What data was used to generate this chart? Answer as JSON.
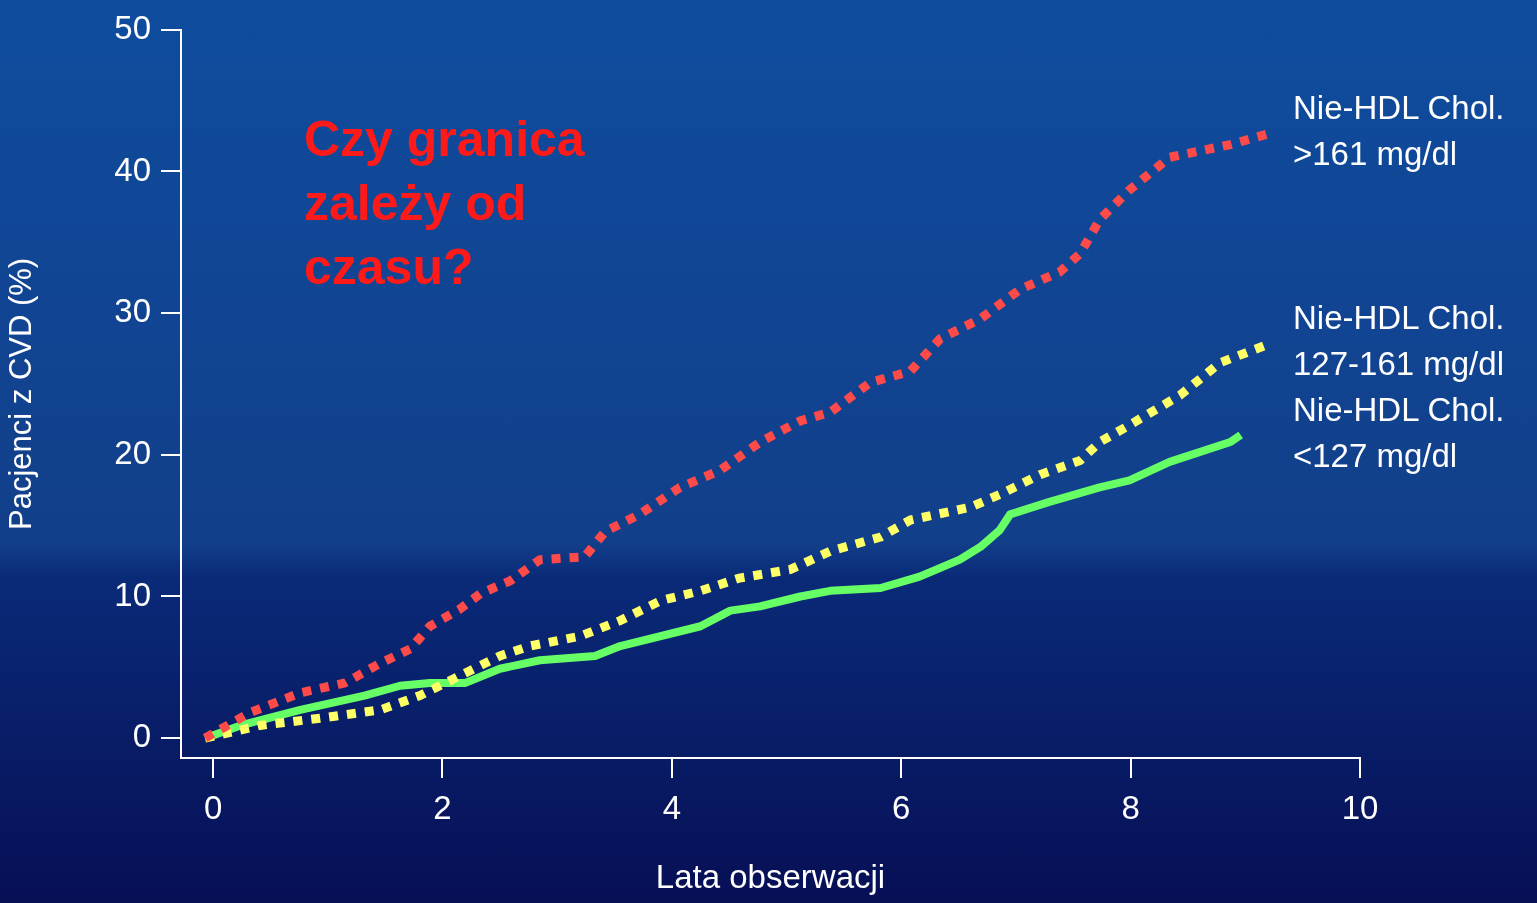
{
  "chart_data": {
    "type": "line",
    "xlabel": "Lata obserwacji",
    "ylabel": "Pacjenci z CVD (%)",
    "annotations": [
      "Czy granica zależy od czasu?"
    ],
    "xlim": [
      -0.28,
      10
    ],
    "xticks": [
      0,
      2,
      4,
      6,
      8,
      10
    ],
    "ylim": [
      -1.4,
      50
    ],
    "yticks": [
      0,
      10,
      20,
      30,
      40,
      50
    ],
    "grid": false,
    "legend": false,
    "marker": "none",
    "series": [
      {
        "name": "Nie-HDL Chol. >161 mg/dl",
        "color": "#ff4a4a",
        "line_style": "dotted",
        "x": [
          -0.07,
          0.32,
          0.76,
          1.15,
          1.46,
          1.72,
          1.89,
          2.15,
          2.33,
          2.59,
          2.85,
          3.24,
          3.42,
          3.72,
          4.07,
          4.42,
          4.77,
          5.12,
          5.38,
          5.73,
          6.08,
          6.34,
          6.69,
          7.04,
          7.38,
          7.56,
          7.73,
          7.99,
          8.34,
          8.87,
          9.22
        ],
        "values": [
          0,
          1.8,
          3.2,
          3.9,
          5.3,
          6.3,
          7.9,
          9.1,
          10.2,
          11.1,
          12.6,
          12.8,
          14.6,
          15.8,
          17.7,
          18.9,
          20.9,
          22.4,
          23,
          25.1,
          25.9,
          28.2,
          29.6,
          31.7,
          32.9,
          34.2,
          36.6,
          38.7,
          41,
          41.9,
          42.7
        ]
      },
      {
        "name": "Nie-HDL Chol. 127-161 mg/dl",
        "color": "#ffff66",
        "line_style": "dotted",
        "x": [
          -0.07,
          0.41,
          0.93,
          1.46,
          1.8,
          2.15,
          2.5,
          2.76,
          3.2,
          3.55,
          3.9,
          4.25,
          4.59,
          5.03,
          5.38,
          5.82,
          6.08,
          6.6,
          6.86,
          7.21,
          7.56,
          7.73,
          7.99,
          8.43,
          8.78,
          9.23
        ],
        "values": [
          0,
          0.9,
          1.4,
          2,
          3,
          4.4,
          5.8,
          6.5,
          7.2,
          8.3,
          9.7,
          10.4,
          11.3,
          11.9,
          13.2,
          14.2,
          15.4,
          16.3,
          17.2,
          18.6,
          19.6,
          20.9,
          22.1,
          24.2,
          26.5,
          27.9
        ]
      },
      {
        "name": "Nie-HDL Chol. <127 mg/dl",
        "color": "#66ff66",
        "line_style": "solid",
        "x": [
          -0.07,
          0.24,
          0.76,
          1.32,
          1.63,
          1.89,
          2.2,
          2.5,
          2.85,
          3.33,
          3.55,
          4.25,
          4.51,
          4.77,
          5.12,
          5.38,
          5.82,
          6.16,
          6.51,
          6.69,
          6.86,
          6.95,
          7.3,
          7.73,
          7.99,
          8.34,
          8.87,
          8.96
        ],
        "values": [
          0,
          0.9,
          2,
          3,
          3.7,
          3.9,
          3.9,
          4.9,
          5.5,
          5.8,
          6.5,
          7.9,
          9,
          9.3,
          10,
          10.4,
          10.6,
          11.4,
          12.6,
          13.5,
          14.7,
          15.8,
          16.7,
          17.7,
          18.2,
          19.5,
          20.9,
          21.4
        ]
      }
    ]
  }
}
